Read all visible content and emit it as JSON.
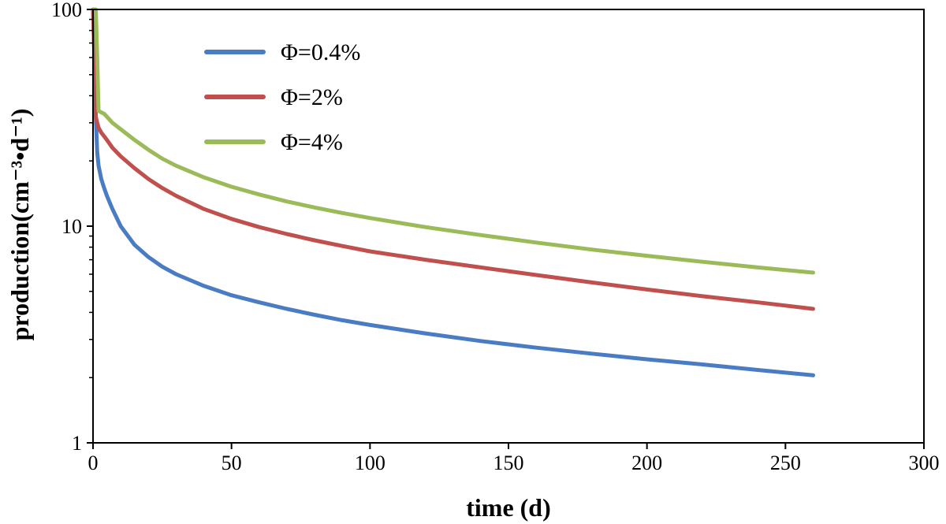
{
  "chart_data": {
    "type": "line",
    "title": "",
    "xlabel": "time (d)",
    "ylabel": "production(cm⁻³•d⁻¹)",
    "yscale": "log",
    "xlim": [
      0,
      300
    ],
    "ylim": [
      1,
      100
    ],
    "xticks": [
      0,
      50,
      100,
      150,
      200,
      250,
      300
    ],
    "xtick_labels": [
      "0",
      "50",
      "100",
      "150",
      "200",
      "250",
      "300"
    ],
    "yticks": [
      1,
      10,
      100
    ],
    "ytick_labels": [
      "1",
      "10",
      "100"
    ],
    "grid": false,
    "legend_position": "top-left",
    "x": [
      0,
      0.5,
      1,
      1.5,
      2,
      3,
      4,
      5,
      7,
      10,
      15,
      20,
      25,
      30,
      40,
      50,
      60,
      70,
      80,
      90,
      100,
      120,
      140,
      160,
      180,
      200,
      220,
      240,
      260
    ],
    "series": [
      {
        "name": "Φ=0.4%",
        "color": "#4a7cc4",
        "values": [
          100,
          60,
          32,
          22,
          19,
          16.5,
          15,
          13.8,
          12,
          10,
          8.2,
          7.2,
          6.5,
          6,
          5.3,
          4.8,
          4.45,
          4.15,
          3.9,
          3.68,
          3.5,
          3.2,
          2.95,
          2.75,
          2.58,
          2.43,
          2.3,
          2.17,
          2.05
        ]
      },
      {
        "name": "Φ=2%",
        "color": "#c0504d",
        "values": [
          100,
          60,
          32,
          30,
          28.5,
          27,
          26,
          25,
          23,
          21,
          18.5,
          16.5,
          15,
          13.8,
          12,
          10.8,
          9.9,
          9.2,
          8.6,
          8.1,
          7.65,
          7,
          6.45,
          5.95,
          5.5,
          5.1,
          4.75,
          4.45,
          4.15
        ]
      },
      {
        "name": "Φ=4%",
        "color": "#9bbb59",
        "values": [
          100,
          100,
          100,
          60,
          34,
          33.5,
          33,
          32,
          30,
          28,
          25,
          22.5,
          20.5,
          19,
          16.8,
          15.2,
          14,
          13,
          12.2,
          11.5,
          10.9,
          9.9,
          9.1,
          8.4,
          7.8,
          7.3,
          6.85,
          6.45,
          6.1
        ]
      }
    ]
  }
}
